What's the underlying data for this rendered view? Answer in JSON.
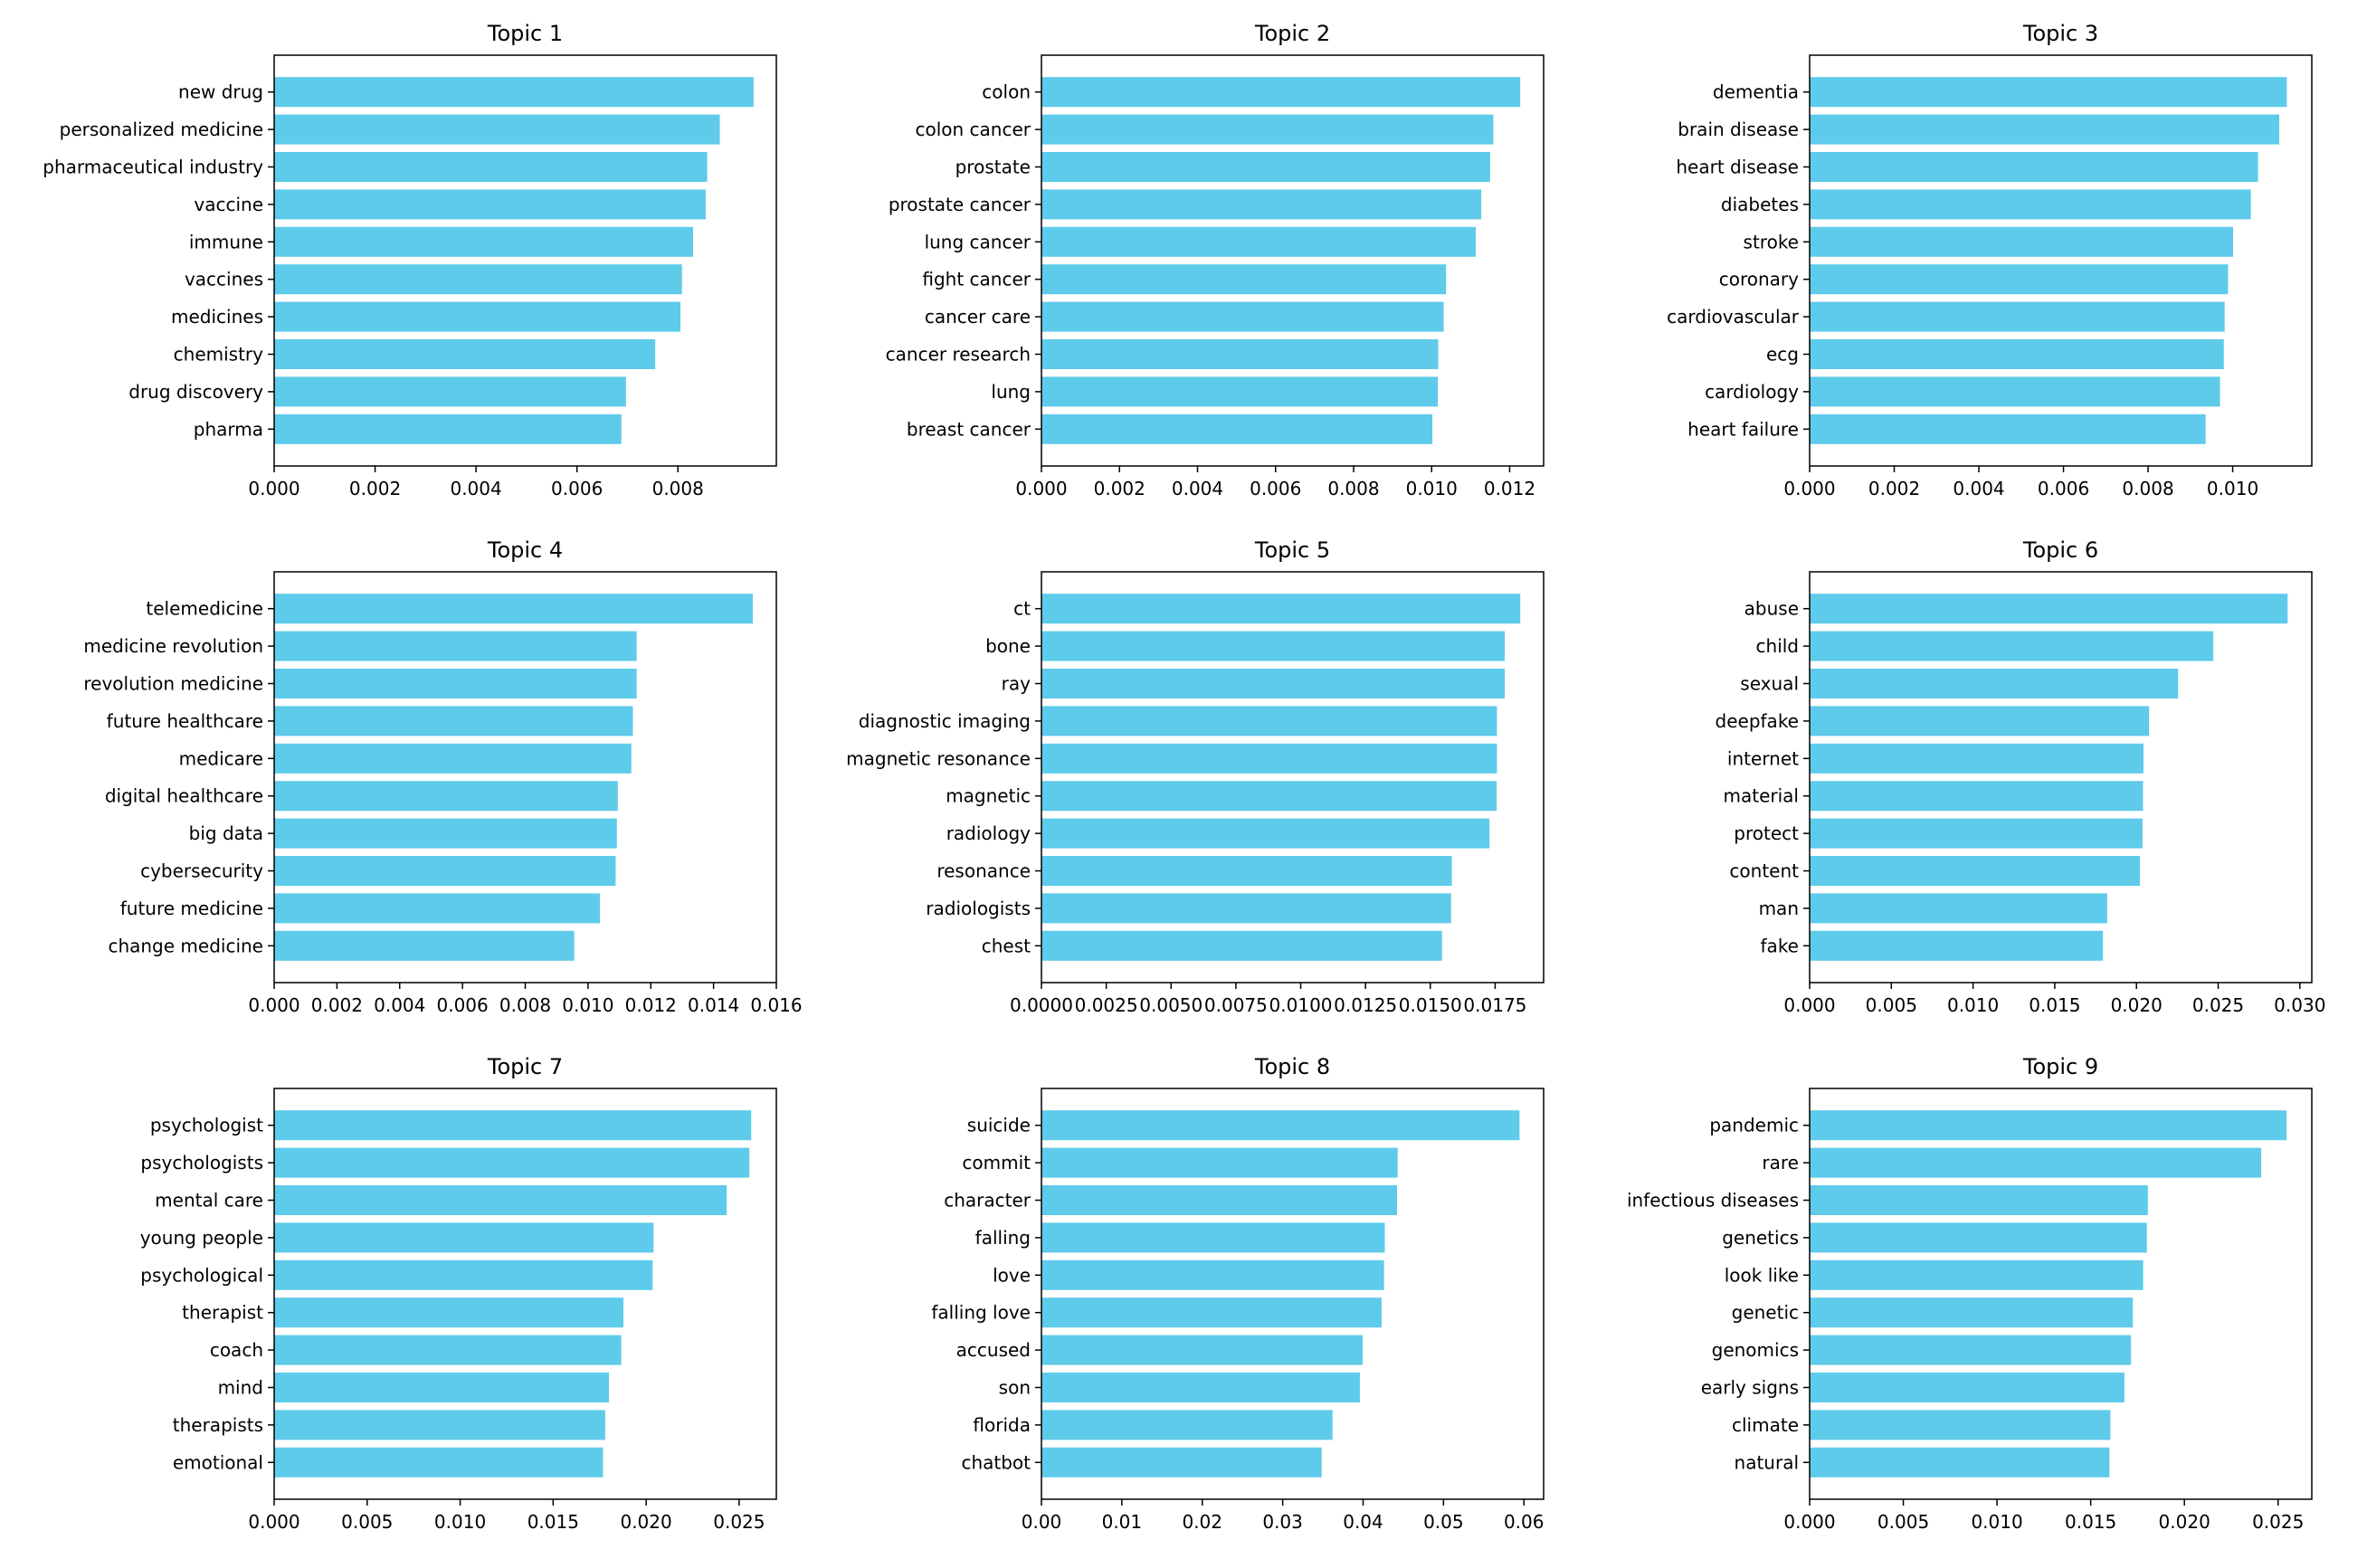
{
  "colors": {
    "bar": "#5ECBEA",
    "axis": "#000000",
    "background": "#ffffff"
  },
  "chart_data": [
    {
      "type": "bar",
      "orientation": "horizontal",
      "title": "Topic 1",
      "categories": [
        "new drug",
        "personalized medicine",
        "pharmaceutical industry",
        "vaccine",
        "immune",
        "vaccines",
        "medicines",
        "chemistry",
        "drug discovery",
        "pharma"
      ],
      "values": [
        0.0095,
        0.00883,
        0.00858,
        0.00855,
        0.0083,
        0.00808,
        0.00805,
        0.00755,
        0.00697,
        0.00688
      ],
      "xlim": [
        0,
        0.00995
      ],
      "xticks": [
        "0.000",
        "0.002",
        "0.004",
        "0.006",
        "0.008"
      ]
    },
    {
      "type": "bar",
      "orientation": "horizontal",
      "title": "Topic 2",
      "categories": [
        "colon",
        "colon cancer",
        "prostate",
        "prostate cancer",
        "lung cancer",
        "fight cancer",
        "cancer care",
        "cancer research",
        "lung",
        "breast cancer"
      ],
      "values": [
        0.01227,
        0.01158,
        0.0115,
        0.01127,
        0.01113,
        0.01037,
        0.01031,
        0.01017,
        0.01016,
        0.01002
      ],
      "xlim": [
        0,
        0.01287
      ],
      "xticks": [
        "0.000",
        "0.002",
        "0.004",
        "0.006",
        "0.008",
        "0.010",
        "0.012"
      ]
    },
    {
      "type": "bar",
      "orientation": "horizontal",
      "title": "Topic 3",
      "categories": [
        "dementia",
        "brain disease",
        "heart disease",
        "diabetes",
        "stroke",
        "coronary",
        "cardiovascular",
        "ecg",
        "cardiology",
        "heart failure"
      ],
      "values": [
        0.01128,
        0.0111,
        0.0106,
        0.01043,
        0.01001,
        0.00989,
        0.00981,
        0.00979,
        0.0097,
        0.00936
      ],
      "xlim": [
        0,
        0.01187
      ],
      "xticks": [
        "0.000",
        "0.002",
        "0.004",
        "0.006",
        "0.008",
        "0.010"
      ]
    },
    {
      "type": "bar",
      "orientation": "horizontal",
      "title": "Topic 4",
      "categories": [
        "telemedicine",
        "medicine revolution",
        "revolution medicine",
        "future healthcare",
        "medicare",
        "digital healthcare",
        "big data",
        "cybersecurity",
        "future medicine",
        "change medicine"
      ],
      "values": [
        0.01525,
        0.01155,
        0.01155,
        0.01143,
        0.01138,
        0.01095,
        0.01092,
        0.01088,
        0.01038,
        0.00956
      ],
      "xlim": [
        0,
        0.016
      ],
      "xticks": [
        "0.000",
        "0.002",
        "0.004",
        "0.006",
        "0.008",
        "0.010",
        "0.012",
        "0.014",
        "0.016"
      ]
    },
    {
      "type": "bar",
      "orientation": "horizontal",
      "title": "Topic 5",
      "categories": [
        "ct",
        "bone",
        "ray",
        "diagnostic imaging",
        "magnetic resonance",
        "magnetic",
        "radiology",
        "resonance",
        "radiologists",
        "chest"
      ],
      "values": [
        0.01847,
        0.01787,
        0.01787,
        0.01757,
        0.01757,
        0.01756,
        0.01728,
        0.01583,
        0.0158,
        0.01545
      ],
      "xlim": [
        0,
        0.01937
      ],
      "xticks": [
        "0.0000",
        "0.0025",
        "0.0050",
        "0.0075",
        "0.0100",
        "0.0125",
        "0.0150",
        "0.0175"
      ]
    },
    {
      "type": "bar",
      "orientation": "horizontal",
      "title": "Topic 6",
      "categories": [
        "abuse",
        "child",
        "sexual",
        "deepfake",
        "internet",
        "material",
        "protect",
        "content",
        "man",
        "fake"
      ],
      "values": [
        0.02925,
        0.0247,
        0.02255,
        0.02077,
        0.02043,
        0.0204,
        0.02037,
        0.02021,
        0.01821,
        0.01795
      ],
      "xlim": [
        0,
        0.03073
      ],
      "xticks": [
        "0.000",
        "0.005",
        "0.010",
        "0.015",
        "0.020",
        "0.025",
        "0.030"
      ]
    },
    {
      "type": "bar",
      "orientation": "horizontal",
      "title": "Topic 7",
      "categories": [
        "psychologist",
        "psychologists",
        "mental care",
        "young people",
        "psychological",
        "therapist",
        "coach",
        "mind",
        "therapists",
        "emotional"
      ],
      "values": [
        0.02565,
        0.02555,
        0.02433,
        0.0204,
        0.02035,
        0.01878,
        0.01866,
        0.018,
        0.0178,
        0.01768
      ],
      "xlim": [
        0,
        0.027
      ],
      "xticks": [
        "0.000",
        "0.005",
        "0.010",
        "0.015",
        "0.020",
        "0.025"
      ]
    },
    {
      "type": "bar",
      "orientation": "horizontal",
      "title": "Topic 8",
      "categories": [
        "suicide",
        "commit",
        "character",
        "falling",
        "love",
        "falling love",
        "accused",
        "son",
        "florida",
        "chatbot"
      ],
      "values": [
        0.05945,
        0.0443,
        0.04422,
        0.0427,
        0.0426,
        0.0423,
        0.03995,
        0.0396,
        0.0362,
        0.03485
      ],
      "xlim": [
        0,
        0.06245
      ],
      "xticks": [
        "0.00",
        "0.01",
        "0.02",
        "0.03",
        "0.04",
        "0.05",
        "0.06"
      ]
    },
    {
      "type": "bar",
      "orientation": "horizontal",
      "title": "Topic 9",
      "categories": [
        "pandemic",
        "rare",
        "infectious diseases",
        "genetics",
        "look like",
        "genetic",
        "genomics",
        "early signs",
        "climate",
        "natural"
      ],
      "values": [
        0.02545,
        0.0241,
        0.01805,
        0.018,
        0.0178,
        0.01725,
        0.01715,
        0.0168,
        0.01605,
        0.016
      ],
      "xlim": [
        0,
        0.0268
      ],
      "xticks": [
        "0.000",
        "0.005",
        "0.010",
        "0.015",
        "0.020",
        "0.025"
      ]
    }
  ]
}
